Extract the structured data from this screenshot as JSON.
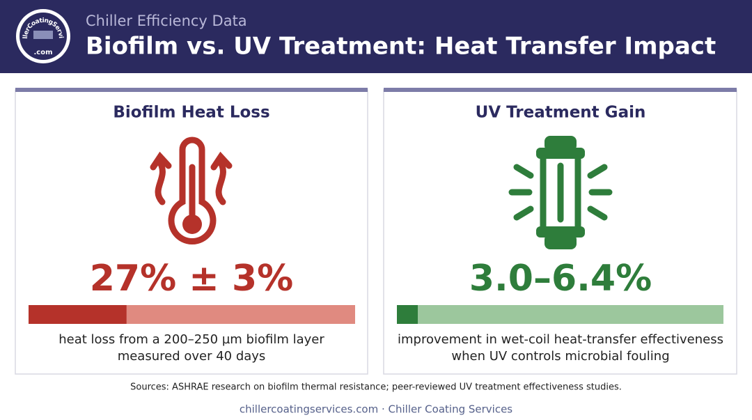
{
  "header": {
    "logo": {
      "name": "ChillerCoatingServices",
      "domain": ".com"
    },
    "subtitle": "Chiller Efficiency Data",
    "title": "Biofilm vs. UV Treatment: Heat Transfer Impact"
  },
  "cards": [
    {
      "title": "Biofilm Heat Loss",
      "stat": {
        "label": "27% ± 3%",
        "value": 27,
        "error": 3
      },
      "description": [
        "heat loss from a 200–250 µm biofilm layer",
        "measured over 40 days"
      ]
    },
    {
      "title": "UV Treatment Gain",
      "stat": {
        "label": "3.0–6.4%",
        "low": 3.0,
        "high": 6.4
      },
      "description": [
        "improvement in wet-coil heat-transfer effectiveness",
        "when UV controls microbial fouling"
      ]
    }
  ],
  "sources": "Sources: ASHRAE research on biofilm thermal resistance; peer-reviewed UV treatment effectiveness studies.",
  "footer": "chillercoatingservices.com · Chiller Coating Services"
}
